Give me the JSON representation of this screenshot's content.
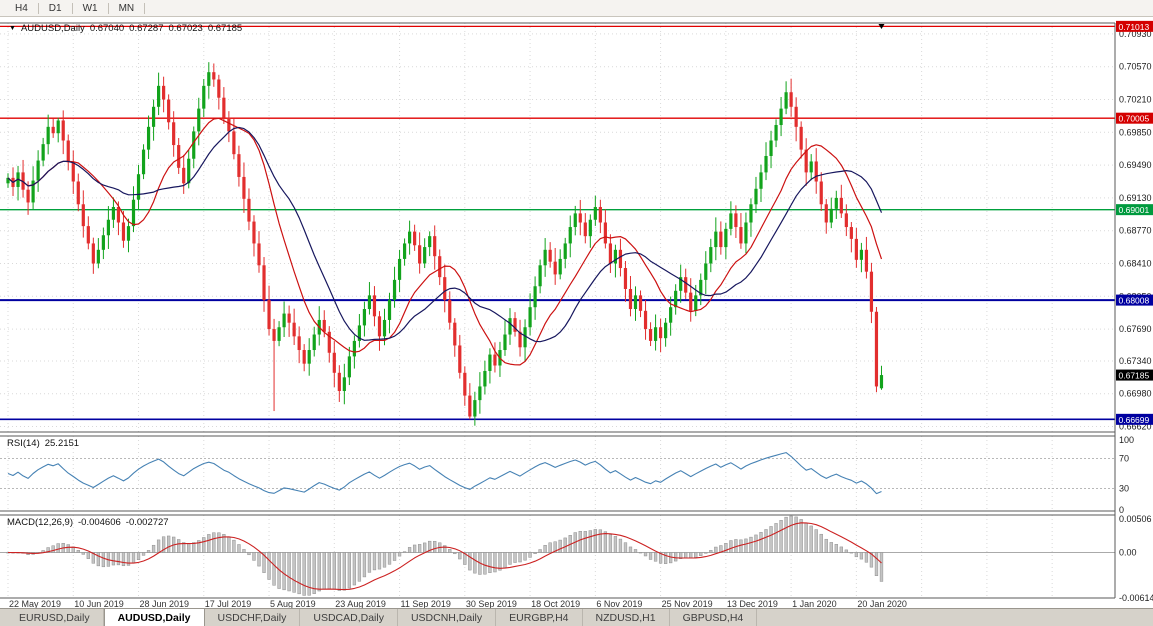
{
  "toolbar": {
    "buttons": [
      "H4",
      "D1",
      "W1",
      "MN"
    ]
  },
  "title": {
    "marker": "▼",
    "symbol": "AUDUSD,Daily",
    "open": "0.67040",
    "high": "0.67287",
    "low": "0.67023",
    "close": "0.67185"
  },
  "price_axis": {
    "labels": [
      "0.70930",
      "0.70570",
      "0.70210",
      "0.69850",
      "0.69490",
      "0.69130",
      "0.68770",
      "0.68410",
      "0.68050",
      "0.67690",
      "0.67340",
      "0.66980",
      "0.66620"
    ],
    "badges": [
      {
        "text": "0.71013",
        "price": 0.71013,
        "bg": "#d40000"
      },
      {
        "text": "0.70005",
        "price": 0.70005,
        "bg": "#d40000"
      },
      {
        "text": "0.69001",
        "price": 0.69001,
        "bg": "#009a3e"
      },
      {
        "text": "0.68008",
        "price": 0.68008,
        "bg": "#0000a0"
      },
      {
        "text": "0.67185",
        "price": 0.67185,
        "bg": "#000000"
      },
      {
        "text": "0.66699",
        "price": 0.66699,
        "bg": "#0000a0"
      }
    ]
  },
  "levels": [
    {
      "price": 0.71013,
      "color": "#e00000",
      "w": 1.2
    },
    {
      "price": 0.70005,
      "color": "#e00000",
      "w": 1.4
    },
    {
      "price": 0.69001,
      "color": "#00a03c",
      "w": 1.4
    },
    {
      "price": 0.68008,
      "color": "#0000a0",
      "w": 2
    },
    {
      "price": 0.66699,
      "color": "#0000a0",
      "w": 1.6
    }
  ],
  "date_axis": {
    "bars_per_label": 13,
    "labels": [
      "22 May 2019",
      "10 Jun 2019",
      "28 Jun 2019",
      "17 Jul 2019",
      "5 Aug 2019",
      "23 Aug 2019",
      "11 Sep 2019",
      "30 Sep 2019",
      "18 Oct 2019",
      "6 Nov 2019",
      "25 Nov 2019",
      "13 Dec 2019",
      "1 Jan 2020",
      "20 Jan 2020"
    ]
  },
  "rsi": {
    "name": "RSI(14)",
    "value": "25.2151",
    "axis_labels": [
      "100",
      "70",
      "30",
      "0"
    ],
    "levels": [
      70,
      30
    ],
    "color": "#4682b4"
  },
  "macd": {
    "name": "MACD(12,26,9)",
    "macd_value": "-0.004606",
    "signal_value": "-0.002727",
    "axis_labels": [
      "0.00506",
      "0.00",
      "-0.00614"
    ],
    "range": {
      "max": 0.00506,
      "min": -0.00614
    },
    "hist_fill": "#c4c4c4",
    "hist_stroke": "#8f8f8f",
    "signal_color": "#cc2222"
  },
  "tabs": [
    {
      "label": "EURUSD,Daily",
      "active": false
    },
    {
      "label": "AUDUSD,Daily",
      "active": true
    },
    {
      "label": "USDCHF,Daily",
      "active": false
    },
    {
      "label": "USDCAD,Daily",
      "active": false
    },
    {
      "label": "USDCNH,Daily",
      "active": false
    },
    {
      "label": "EURGBP,H4",
      "active": false
    },
    {
      "label": "NZDUSD,H1",
      "active": false
    },
    {
      "label": "GBPUSD,H4",
      "active": false
    }
  ],
  "colors": {
    "grid": "#d9d9d9",
    "panel_border": "#5a5a5a",
    "axis_text": "#1d1d1d",
    "bg": "#ffffff"
  },
  "chart_data": {
    "type": "candlestick",
    "symbol": "AUDUSD",
    "period": "Daily",
    "title": "AUDUSD,Daily",
    "x_range": [
      "22 May 2019",
      "24 Jan 2020"
    ],
    "price_range": {
      "max": 0.7105,
      "min": 0.6656
    },
    "up_color": "#12a31c",
    "down_color": "#e22e2e",
    "closes": [
      0.6935,
      0.6925,
      0.6941,
      0.6922,
      0.6908,
      0.6932,
      0.6954,
      0.6972,
      0.6991,
      0.6984,
      0.6998,
      0.6976,
      0.6952,
      0.6931,
      0.6906,
      0.6882,
      0.6863,
      0.6841,
      0.6856,
      0.6872,
      0.6889,
      0.6903,
      0.6886,
      0.6866,
      0.6882,
      0.6911,
      0.6939,
      0.6966,
      0.6991,
      0.7013,
      0.7036,
      0.7021,
      0.6996,
      0.6971,
      0.6946,
      0.6929,
      0.6956,
      0.6986,
      0.7011,
      0.7036,
      0.7051,
      0.7043,
      0.7023,
      0.7001,
      0.6986,
      0.6961,
      0.6936,
      0.6912,
      0.6887,
      0.6863,
      0.6839,
      0.6801,
      0.6769,
      0.6756,
      0.6771,
      0.6786,
      0.6776,
      0.6761,
      0.6746,
      0.6731,
      0.6746,
      0.6763,
      0.6779,
      0.6766,
      0.6743,
      0.6721,
      0.6701,
      0.6716,
      0.6739,
      0.6756,
      0.6773,
      0.6791,
      0.6806,
      0.6783,
      0.6761,
      0.6779,
      0.6801,
      0.6823,
      0.6846,
      0.6863,
      0.6876,
      0.6861,
      0.6841,
      0.6859,
      0.6871,
      0.6849,
      0.6826,
      0.6801,
      0.6776,
      0.6751,
      0.6721,
      0.6696,
      0.6673,
      0.6691,
      0.6706,
      0.6723,
      0.6741,
      0.6729,
      0.6746,
      0.6763,
      0.6781,
      0.6766,
      0.6749,
      0.6771,
      0.6793,
      0.6816,
      0.6839,
      0.6856,
      0.6843,
      0.6829,
      0.6846,
      0.6863,
      0.6881,
      0.6896,
      0.6886,
      0.6871,
      0.6889,
      0.6903,
      0.6886,
      0.6863,
      0.6841,
      0.6856,
      0.6836,
      0.6813,
      0.6791,
      0.6806,
      0.6789,
      0.6769,
      0.6756,
      0.6771,
      0.6759,
      0.6776,
      0.6793,
      0.6811,
      0.6826,
      0.6809,
      0.6789,
      0.6806,
      0.6823,
      0.6841,
      0.6859,
      0.6876,
      0.6859,
      0.6879,
      0.6896,
      0.6881,
      0.6863,
      0.6886,
      0.6906,
      0.6923,
      0.6941,
      0.6959,
      0.6976,
      0.6993,
      0.7011,
      0.7029,
      0.7013,
      0.6991,
      0.6966,
      0.6941,
      0.6953,
      0.6931,
      0.6906,
      0.6886,
      0.6901,
      0.6913,
      0.6896,
      0.6881,
      0.6868,
      0.6845,
      0.6856,
      0.6832,
      0.6788,
      0.6706,
      0.67185
    ],
    "wick_overrides": {
      "10": {
        "high": 0.7001
      },
      "40": {
        "high": 0.7062
      },
      "53": {
        "low": 0.6679
      },
      "66": {
        "low": 0.6689
      },
      "92": {
        "low": 0.667
      },
      "155": {
        "high": 0.7041
      },
      "174": {
        "open": 0.6704,
        "high": 0.67287,
        "low": 0.67023
      }
    },
    "ma": [
      {
        "period": 13,
        "color": "#cc1111",
        "name": "ma-fast"
      },
      {
        "period": 21,
        "color": "#17175e",
        "name": "ma-slow"
      }
    ]
  }
}
